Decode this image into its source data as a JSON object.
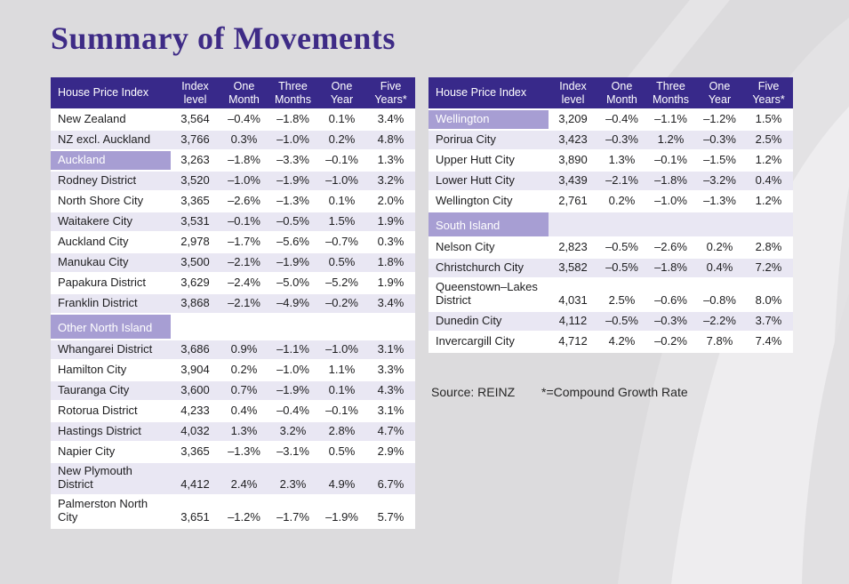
{
  "title": "Summary of Movements",
  "footer": {
    "source": "Source: REINZ",
    "note": "*=Compound Growth Rate"
  },
  "colors": {
    "header_bg": "#38298a",
    "highlight_cell": "#a79ed3",
    "alt_row": "#e9e7f3",
    "page_bg": "#dcdbdd",
    "title_text": "#3e2b86"
  },
  "header_cols": [
    "House Price Index",
    "Index level",
    "One Month",
    "Three Months",
    "One Year",
    "Five Years*"
  ],
  "left_table": {
    "rows": [
      {
        "type": "data",
        "name": "New Zealand",
        "values": [
          "3,564",
          "–0.4%",
          "–1.8%",
          "0.1%",
          "3.4%"
        ]
      },
      {
        "type": "data",
        "name": "NZ excl. Auckland",
        "values": [
          "3,766",
          "0.3%",
          "–1.0%",
          "0.2%",
          "4.8%"
        ]
      },
      {
        "type": "highlight",
        "name": "Auckland",
        "values": [
          "3,263",
          "–1.8%",
          "–3.3%",
          "–0.1%",
          "1.3%"
        ]
      },
      {
        "type": "data",
        "name": "Rodney District",
        "values": [
          "3,520",
          "–1.0%",
          "–1.9%",
          "–1.0%",
          "3.2%"
        ]
      },
      {
        "type": "data",
        "name": "North Shore City",
        "values": [
          "3,365",
          "–2.6%",
          "–1.3%",
          "0.1%",
          "2.0%"
        ]
      },
      {
        "type": "data",
        "name": "Waitakere City",
        "values": [
          "3,531",
          "–0.1%",
          "–0.5%",
          "1.5%",
          "1.9%"
        ]
      },
      {
        "type": "data",
        "name": "Auckland City",
        "values": [
          "2,978",
          "–1.7%",
          "–5.6%",
          "–0.7%",
          "0.3%"
        ]
      },
      {
        "type": "data",
        "name": "Manukau City",
        "values": [
          "3,500",
          "–2.1%",
          "–1.9%",
          "0.5%",
          "1.8%"
        ]
      },
      {
        "type": "data",
        "name": "Papakura District",
        "values": [
          "3,629",
          "–2.4%",
          "–5.0%",
          "–5.2%",
          "1.9%"
        ]
      },
      {
        "type": "data",
        "name": "Franklin District",
        "values": [
          "3,868",
          "–2.1%",
          "–4.9%",
          "–0.2%",
          "3.4%"
        ]
      },
      {
        "type": "section",
        "name": "Other North Island",
        "values": [
          "",
          "",
          "",
          "",
          ""
        ]
      },
      {
        "type": "data",
        "name": "Whangarei District",
        "values": [
          "3,686",
          "0.9%",
          "–1.1%",
          "–1.0%",
          "3.1%"
        ]
      },
      {
        "type": "data",
        "name": "Hamilton City",
        "values": [
          "3,904",
          "0.2%",
          "–1.0%",
          "1.1%",
          "3.3%"
        ]
      },
      {
        "type": "data",
        "name": "Tauranga City",
        "values": [
          "3,600",
          "0.7%",
          "–1.9%",
          "0.1%",
          "4.3%"
        ]
      },
      {
        "type": "data",
        "name": "Rotorua District",
        "values": [
          "4,233",
          "0.4%",
          "–0.4%",
          "–0.1%",
          "3.1%"
        ]
      },
      {
        "type": "data",
        "name": "Hastings District",
        "values": [
          "4,032",
          "1.3%",
          "3.2%",
          "2.8%",
          "4.7%"
        ]
      },
      {
        "type": "data",
        "name": "Napier City",
        "values": [
          "3,365",
          "–1.3%",
          "–3.1%",
          "0.5%",
          "2.9%"
        ]
      },
      {
        "type": "data",
        "name": "New Plymouth District",
        "values": [
          "4,412",
          "2.4%",
          "2.3%",
          "4.9%",
          "6.7%"
        ]
      },
      {
        "type": "data",
        "name": "Palmerston North City",
        "values": [
          "3,651",
          "–1.2%",
          "–1.7%",
          "–1.9%",
          "5.7%"
        ]
      }
    ]
  },
  "right_table": {
    "rows": [
      {
        "type": "highlight",
        "name": "Wellington",
        "values": [
          "3,209",
          "–0.4%",
          "–1.1%",
          "–1.2%",
          "1.5%"
        ]
      },
      {
        "type": "data",
        "name": "Porirua City",
        "values": [
          "3,423",
          "–0.3%",
          "1.2%",
          "–0.3%",
          "2.5%"
        ]
      },
      {
        "type": "data",
        "name": "Upper Hutt City",
        "values": [
          "3,890",
          "1.3%",
          "–0.1%",
          "–1.5%",
          "1.2%"
        ]
      },
      {
        "type": "data",
        "name": "Lower Hutt City",
        "values": [
          "3,439",
          "–2.1%",
          "–1.8%",
          "–3.2%",
          "0.4%"
        ]
      },
      {
        "type": "data",
        "name": "Wellington City",
        "values": [
          "2,761",
          "0.2%",
          "–1.0%",
          "–1.3%",
          "1.2%"
        ]
      },
      {
        "type": "section",
        "name": "South Island",
        "values": [
          "",
          "",
          "",
          "",
          ""
        ]
      },
      {
        "type": "data",
        "name": "Nelson City",
        "values": [
          "2,823",
          "–0.5%",
          "–2.6%",
          "0.2%",
          "2.8%"
        ]
      },
      {
        "type": "data",
        "name": "Christchurch City",
        "values": [
          "3,582",
          "–0.5%",
          "–1.8%",
          "0.4%",
          "7.2%"
        ]
      },
      {
        "type": "data",
        "name": "Queenstown–Lakes District",
        "values": [
          "4,031",
          "2.5%",
          "–0.6%",
          "–0.8%",
          "8.0%"
        ]
      },
      {
        "type": "data",
        "name": "Dunedin City",
        "values": [
          "4,112",
          "–0.5%",
          "–0.3%",
          "–2.2%",
          "3.7%"
        ]
      },
      {
        "type": "data",
        "name": "Invercargill City",
        "values": [
          "4,712",
          "4.2%",
          "–0.2%",
          "7.8%",
          "7.4%"
        ]
      }
    ]
  }
}
